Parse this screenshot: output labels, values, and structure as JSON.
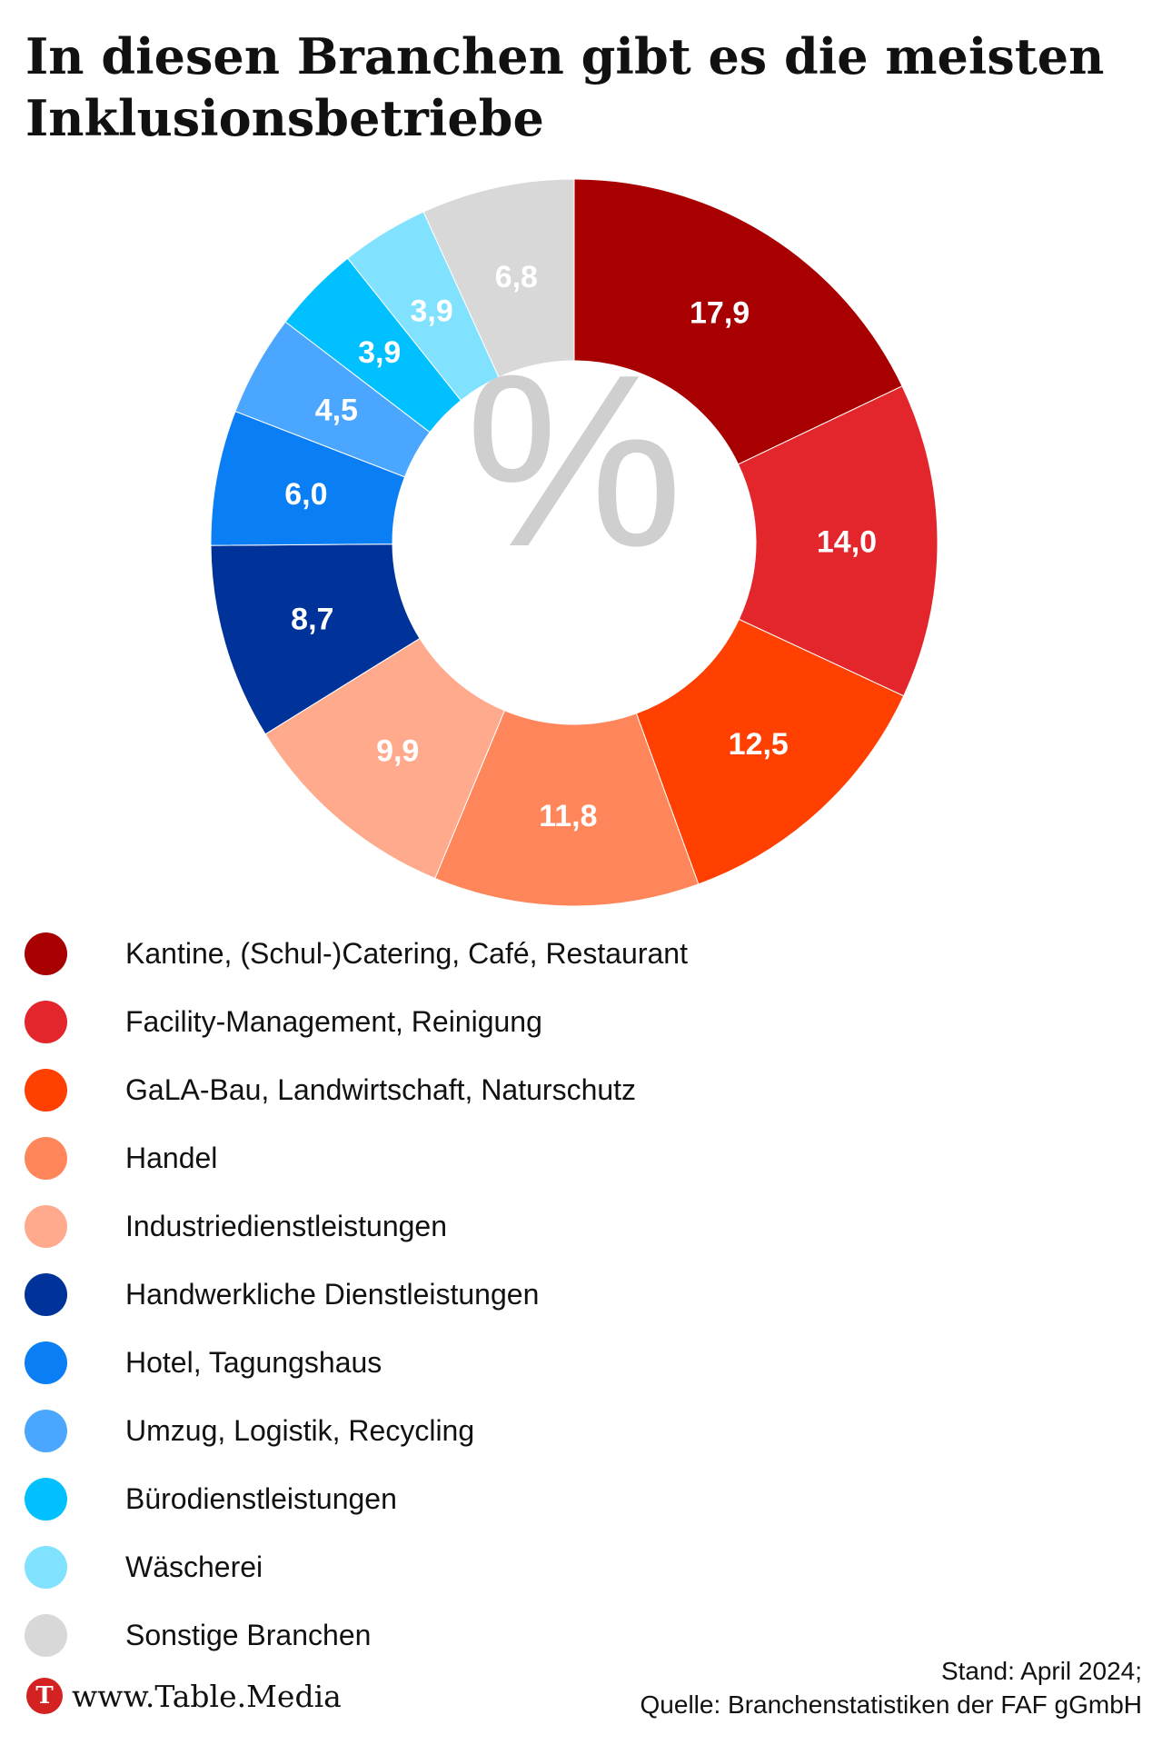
{
  "chart_data": {
    "type": "donut",
    "title": "In diesen Branchen gibt es die meisten Inklusionsbetriebe",
    "center_label": "%",
    "unit": "%",
    "series": [
      {
        "name": "Kantine, (Schul-)Catering, Café, Restaurant",
        "value": 17.9,
        "label": "17,9",
        "color": "#a80000"
      },
      {
        "name": "Facility-Management, Reinigung",
        "value": 14.0,
        "label": "14,0",
        "color": "#e3262b"
      },
      {
        "name": "GaLA-Bau, Landwirtschaft, Naturschutz",
        "value": 12.5,
        "label": "12,5",
        "color": "#ff4000"
      },
      {
        "name": "Handel",
        "value": 11.8,
        "label": "11,8",
        "color": "#ff855a"
      },
      {
        "name": "Industriedienstleistungen",
        "value": 9.9,
        "label": "9,9",
        "color": "#ffaa8c"
      },
      {
        "name": "Handwerkliche Dienstleistungen",
        "value": 8.7,
        "label": "8,7",
        "color": "#003399"
      },
      {
        "name": "Hotel, Tagungshaus",
        "value": 6.0,
        "label": "6,0",
        "color": "#0a7ef5"
      },
      {
        "name": "Umzug, Logistik, Recycling",
        "value": 4.5,
        "label": "4,5",
        "color": "#4ba6ff"
      },
      {
        "name": "Bürodienstleistungen",
        "value": 3.9,
        "label": "3,9",
        "color": "#00c0ff"
      },
      {
        "name": "Wäscherei",
        "value": 3.9,
        "label": "3,9",
        "color": "#80e2ff"
      },
      {
        "name": "Sonstige Branchen",
        "value": 6.8,
        "label": "6,8",
        "color": "#d8d8d8"
      }
    ],
    "legend_position": "bottom-left"
  },
  "footer": {
    "logo_text": "www.Table.Media",
    "logo_initial": "T",
    "stand": "Stand: April 2024;",
    "source": "Quelle: Branchenstatistiken der FAF gGmbH"
  }
}
